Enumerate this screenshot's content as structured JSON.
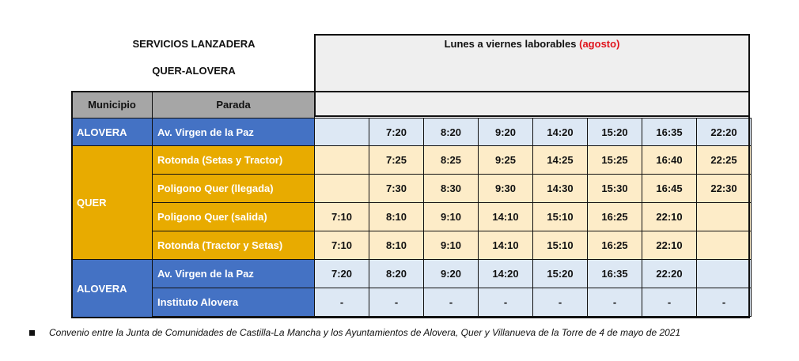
{
  "title": {
    "line1": "SERVICIOS LANZADERA",
    "line2": "QUER-ALOVERA"
  },
  "schedule_header": {
    "main": "Lunes a viernes laborables",
    "highlight": "(agosto)"
  },
  "columns": {
    "municipio": "Municipio",
    "parada": "Parada"
  },
  "municipalities": {
    "alovera_top": "ALOVERA",
    "quer": "QUER",
    "alovera_bottom": "ALOVERA"
  },
  "stops": [
    {
      "name": "Av. Virgen de la Paz",
      "times": [
        "",
        "7:20",
        "8:20",
        "9:20",
        "14:20",
        "15:20",
        "16:35",
        "22:20"
      ]
    },
    {
      "name": "Rotonda (Setas y Tractor)",
      "times": [
        "",
        "7:25",
        "8:25",
        "9:25",
        "14:25",
        "15:25",
        "16:40",
        "22:25"
      ]
    },
    {
      "name": "Poligono Quer (llegada)",
      "times": [
        "",
        "7:30",
        "8:30",
        "9:30",
        "14:30",
        "15:30",
        "16:45",
        "22:30"
      ]
    },
    {
      "name": "Poligono Quer (salida)",
      "times": [
        "7:10",
        "8:10",
        "9:10",
        "14:10",
        "15:10",
        "16:25",
        "22:10",
        ""
      ]
    },
    {
      "name": "Rotonda (Tractor y Setas)",
      "times": [
        "7:10",
        "8:10",
        "9:10",
        "14:10",
        "15:10",
        "16:25",
        "22:10",
        ""
      ]
    },
    {
      "name": "Av. Virgen de la Paz",
      "times": [
        "7:20",
        "8:20",
        "9:20",
        "14:20",
        "15:20",
        "16:35",
        "22:20",
        ""
      ]
    },
    {
      "name": "Instituto Alovera",
      "times": [
        "-",
        "-",
        "-",
        "-",
        "-",
        "-",
        "-",
        "-"
      ]
    }
  ],
  "footnote": "Convenio entre la Junta de Comunidades de Castilla-La Mancha y los Ayuntamientos de Alovera, Quer y Villanueva de la Torre de 4 de mayo de 2021",
  "colors": {
    "blue": "#4472c4",
    "gold": "#e8ab00",
    "light_blue": "#dde8f4",
    "light_yellow": "#fdecc8",
    "gray": "#a6a6a6",
    "red": "#e0141c"
  }
}
